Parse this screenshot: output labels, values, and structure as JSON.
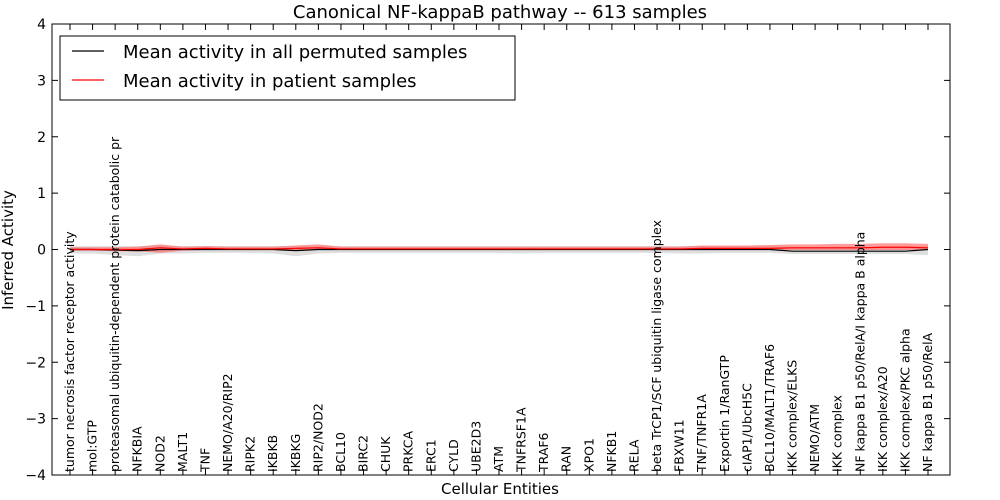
{
  "chart_data": {
    "type": "line",
    "title": "Canonical NF-kappaB pathway -- 613 samples",
    "xlabel": "Cellular Entities",
    "ylabel": "Inferred Activity",
    "ylim": [
      -4,
      4
    ],
    "yticks": [
      -4,
      -3,
      -2,
      -1,
      0,
      1,
      2,
      3,
      4
    ],
    "ytick_labels": [
      "−4",
      "−3",
      "−2",
      "−1",
      "0",
      "1",
      "2",
      "3",
      "4"
    ],
    "grid": false,
    "legend_position": "top-left",
    "categories": [
      "tumor necrosis factor receptor activity",
      "mol:GTP",
      "proteasomal ubiquitin-dependent protein catabolic pr",
      "NFKBIA",
      "NOD2",
      "MALT1",
      "TNF",
      "NEMO/A20/RIP2",
      "RIPK2",
      "IKBKB",
      "IKBKG",
      "RIP2/NOD2",
      "BCL10",
      "BIRC2",
      "CHUK",
      "PRKCA",
      "ERC1",
      "CYLD",
      "UBE2D3",
      "ATM",
      "TNFRSF1A",
      "TRAF6",
      "RAN",
      "XPO1",
      "NFKB1",
      "RELA",
      "beta TrCP1/SCF ubiquitin ligase complex",
      "FBXW11",
      "TNF/TNFR1A",
      "Exportin 1/RanGTP",
      "cIAP1/UbcH5C",
      "BCL10/MALT1/TRAF6",
      "IKK complex/ELKS",
      "NEMO/ATM",
      "IKK complex",
      "NF kappa B1 p50/RelA/I kappa B alpha",
      "IKK complex/A20",
      "IKK complex/PKC alpha",
      "NF kappa B1 p50/RelA"
    ],
    "series": [
      {
        "name": "Mean activity in all permuted samples",
        "color": "#000000",
        "values": [
          0.0,
          0.0,
          -0.01,
          -0.02,
          0.0,
          0.0,
          0.0,
          0.0,
          0.0,
          0.0,
          -0.02,
          0.0,
          0.0,
          0.0,
          0.0,
          0.0,
          0.0,
          0.0,
          0.0,
          0.0,
          0.0,
          0.0,
          0.0,
          0.0,
          0.0,
          0.0,
          0.0,
          0.0,
          0.0,
          0.0,
          0.0,
          0.0,
          -0.03,
          -0.03,
          -0.03,
          -0.03,
          -0.03,
          -0.03,
          0.0
        ],
        "band_low": [
          -0.07,
          -0.07,
          -0.1,
          -0.12,
          -0.07,
          -0.07,
          -0.06,
          -0.06,
          -0.06,
          -0.07,
          -0.12,
          -0.07,
          -0.06,
          -0.06,
          -0.06,
          -0.06,
          -0.06,
          -0.06,
          -0.06,
          -0.06,
          -0.07,
          -0.06,
          -0.06,
          -0.06,
          -0.06,
          -0.06,
          -0.06,
          -0.07,
          -0.07,
          -0.06,
          -0.06,
          -0.06,
          -0.08,
          -0.08,
          -0.08,
          -0.08,
          -0.08,
          -0.08,
          -0.1
        ],
        "band_high": [
          0.06,
          0.06,
          0.06,
          0.06,
          0.06,
          0.06,
          0.06,
          0.06,
          0.06,
          0.06,
          0.06,
          0.06,
          0.06,
          0.06,
          0.06,
          0.06,
          0.06,
          0.06,
          0.06,
          0.06,
          0.06,
          0.06,
          0.06,
          0.06,
          0.06,
          0.06,
          0.06,
          0.06,
          0.06,
          0.06,
          0.06,
          0.06,
          0.05,
          0.05,
          0.05,
          0.05,
          0.05,
          0.05,
          0.06
        ],
        "band_color": "#c8c8c8"
      },
      {
        "name": "Mean activity in patient samples",
        "color": "#ff0000",
        "values": [
          0.0,
          0.0,
          0.0,
          0.0,
          0.03,
          0.01,
          0.02,
          0.01,
          0.01,
          0.01,
          0.02,
          0.03,
          0.01,
          0.01,
          0.01,
          0.01,
          0.01,
          0.01,
          0.01,
          0.01,
          0.01,
          0.01,
          0.01,
          0.01,
          0.01,
          0.01,
          0.01,
          0.01,
          0.02,
          0.02,
          0.02,
          0.02,
          0.03,
          0.03,
          0.03,
          0.03,
          0.04,
          0.04,
          0.03
        ],
        "band_low": [
          -0.02,
          -0.02,
          -0.03,
          -0.03,
          -0.06,
          -0.02,
          -0.01,
          -0.01,
          -0.01,
          -0.01,
          -0.01,
          -0.01,
          -0.01,
          -0.01,
          -0.01,
          -0.01,
          -0.01,
          -0.01,
          -0.01,
          -0.01,
          -0.01,
          -0.01,
          -0.01,
          -0.01,
          -0.01,
          -0.01,
          -0.01,
          -0.01,
          -0.01,
          -0.01,
          -0.01,
          -0.01,
          -0.01,
          -0.01,
          -0.01,
          -0.01,
          -0.01,
          -0.01,
          -0.01
        ],
        "band_high": [
          0.04,
          0.04,
          0.04,
          0.05,
          0.09,
          0.05,
          0.06,
          0.05,
          0.05,
          0.05,
          0.07,
          0.09,
          0.05,
          0.05,
          0.05,
          0.05,
          0.05,
          0.05,
          0.05,
          0.05,
          0.05,
          0.05,
          0.05,
          0.05,
          0.05,
          0.05,
          0.05,
          0.05,
          0.07,
          0.07,
          0.07,
          0.08,
          0.09,
          0.09,
          0.1,
          0.1,
          0.11,
          0.11,
          0.1
        ],
        "band_color": "#ff7070"
      }
    ]
  }
}
